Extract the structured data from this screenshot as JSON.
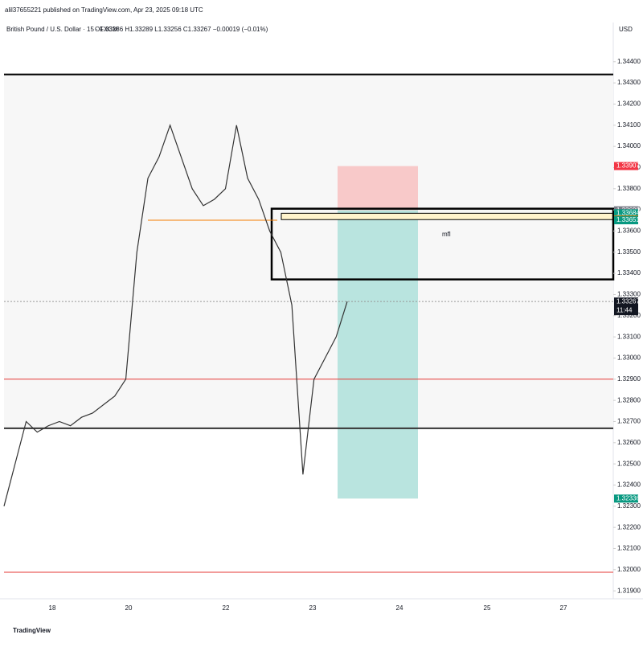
{
  "header": {
    "published": "alil37655221 published on TradingView.com, Apr 23, 2025 09:18 UTC",
    "symbol": "British Pound / U.S. Dollar · 15 · FXCM",
    "ohlc": "O1.33286 H1.33289 L1.33256 C1.33267 −0.00019 (−0.01%)",
    "currency": "USD"
  },
  "footer": {
    "brand": "TradingView"
  },
  "chart_data": {
    "type": "line",
    "color": "#333333",
    "values": [
      1.323,
      1.325,
      1.327,
      1.3265,
      1.3268,
      1.327,
      1.3268,
      1.3272,
      1.3274,
      1.3278,
      1.3282,
      1.329,
      1.335,
      1.3385,
      1.3395,
      1.341,
      1.3395,
      1.338,
      1.3372,
      1.3375,
      1.338,
      1.341,
      1.3385,
      1.3375,
      1.336,
      1.335,
      1.3325,
      1.3245,
      1.329,
      1.33,
      1.331,
      1.33267
    ],
    "ylim": [
      1.3446,
      1.31855
    ],
    "yticks": [
      {
        "value": 1.344,
        "label": "1.34400"
      },
      {
        "value": 1.343,
        "label": "1.34300"
      },
      {
        "value": 1.342,
        "label": "1.34200"
      },
      {
        "value": 1.341,
        "label": "1.34100"
      },
      {
        "value": 1.34,
        "label": "1.34000"
      },
      {
        "value": 1.339,
        "label": "1.33900"
      },
      {
        "value": 1.338,
        "label": "1.33800"
      },
      {
        "value": 1.337,
        "label": "1.33700"
      },
      {
        "value": 1.336,
        "label": "1.33600"
      },
      {
        "value": 1.335,
        "label": "1.33500"
      },
      {
        "value": 1.334,
        "label": "1.33400"
      },
      {
        "value": 1.333,
        "label": "1.33300"
      },
      {
        "value": 1.332,
        "label": "1.33200"
      },
      {
        "value": 1.331,
        "label": "1.33100"
      },
      {
        "value": 1.33,
        "label": "1.33000"
      },
      {
        "value": 1.329,
        "label": "1.32900"
      },
      {
        "value": 1.328,
        "label": "1.32800"
      },
      {
        "value": 1.327,
        "label": "1.32700"
      },
      {
        "value": 1.326,
        "label": "1.32600"
      },
      {
        "value": 1.325,
        "label": "1.32500"
      },
      {
        "value": 1.324,
        "label": "1.32400"
      },
      {
        "value": 1.323,
        "label": "1.32300"
      },
      {
        "value": 1.322,
        "label": "1.32200"
      },
      {
        "value": 1.321,
        "label": "1.32100"
      },
      {
        "value": 1.32,
        "label": "1.32000"
      },
      {
        "value": 1.319,
        "label": "1.31900"
      }
    ],
    "date_labels": [
      "18",
      "20",
      "22",
      "23",
      "24",
      "25",
      "27"
    ],
    "levels": [
      {
        "value": 1.3434,
        "color": "#000000"
      },
      {
        "value": 1.32668,
        "color": "#333333"
      },
      {
        "value": 1.329,
        "color": "#e53935"
      },
      {
        "value": 1.31988,
        "color": "#e53935"
      }
    ],
    "badges": [
      {
        "value": 1.33907,
        "label": "1.33907",
        "color": "#f23645"
      },
      {
        "value": 1.33698,
        "label": "1.33698",
        "color": "#787b86"
      },
      {
        "value": 1.33684,
        "label": "1.33684",
        "color": "#089981"
      },
      {
        "value": 1.33654,
        "label": "1.33654",
        "color": "#f57c00"
      },
      {
        "value": 1.33651,
        "label": "1.33651",
        "color": "#089981"
      },
      {
        "value": 1.33267,
        "label": "1.33267",
        "color": "#131722"
      },
      {
        "value": 1.32336,
        "label": "1.32336",
        "color": "#089981"
      }
    ],
    "countdown": "11:44",
    "annotation": "mfl"
  }
}
